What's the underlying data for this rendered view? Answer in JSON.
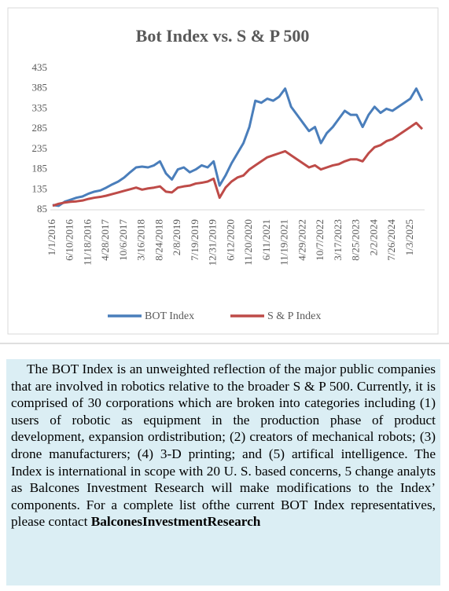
{
  "chart_data": {
    "type": "line",
    "title": "Bot Index vs. S & P 500",
    "categories": [
      "1/1/2016",
      null,
      null,
      "6/10/2016",
      null,
      null,
      "11/18/2016",
      null,
      null,
      "4/28/2017",
      null,
      null,
      "10/6/2017",
      null,
      null,
      "3/16/2018",
      null,
      null,
      "8/24/2018",
      null,
      null,
      "2/8/2019",
      null,
      null,
      "7/19/2019",
      null,
      null,
      "12/31/2019",
      null,
      null,
      "6/12/2020",
      null,
      null,
      "11/20/2020",
      null,
      null,
      "6/11/2021",
      null,
      null,
      "11/19/2021",
      null,
      null,
      "4/29/2022",
      null,
      null,
      "10/7/2022",
      null,
      null,
      "3/17/2023",
      null,
      null,
      "8/25/2023",
      null,
      null,
      "2/2/2024",
      null,
      null,
      "7/26/2024",
      null,
      null,
      "1/3/2025",
      null,
      null
    ],
    "series": [
      {
        "name": "BOT Index",
        "color": "#4a7ebb",
        "values": [
          97,
          95,
          105,
          110,
          115,
          118,
          125,
          130,
          133,
          140,
          148,
          155,
          165,
          178,
          190,
          192,
          190,
          195,
          205,
          175,
          160,
          185,
          190,
          178,
          185,
          195,
          190,
          205,
          145,
          170,
          200,
          225,
          250,
          290,
          355,
          350,
          360,
          355,
          365,
          385,
          340,
          320,
          300,
          280,
          290,
          250,
          275,
          290,
          310,
          330,
          320,
          320,
          290,
          320,
          340,
          325,
          335,
          330,
          340,
          350,
          360,
          385,
          355
        ]
      },
      {
        "name": "S & P Index",
        "color": "#be4b48",
        "values": [
          95,
          100,
          103,
          105,
          106,
          108,
          112,
          115,
          117,
          120,
          124,
          128,
          132,
          136,
          140,
          135,
          138,
          140,
          143,
          130,
          128,
          140,
          143,
          145,
          150,
          152,
          155,
          162,
          115,
          140,
          155,
          165,
          170,
          185,
          195,
          205,
          215,
          220,
          225,
          230,
          220,
          210,
          200,
          190,
          195,
          185,
          190,
          195,
          198,
          205,
          210,
          210,
          205,
          225,
          240,
          245,
          255,
          260,
          270,
          280,
          290,
          300,
          285
        ]
      }
    ],
    "ylim": [
      85,
      435
    ],
    "yticks": [
      85,
      135,
      185,
      235,
      285,
      335,
      385,
      435
    ],
    "grid": false,
    "legend": "bottom"
  },
  "description": {
    "text": "The BOT Index is an unweighted reflection of the major public companies that are involved in robotics relative to the broader S & P 500. Currently, it is comprised of 30 corporations which are broken into categories including (1) users of robotic as equipment in the production phase of product development, expansion ordistribution; (2) creators of mechanical robots; (3) drone manufacturers; (4) 3-D printing; and (5) artifical intelligence. The Index is international in scope with 20 U. S. based concerns, 5 change analyts as Balcones Investment Research will make modifications to the Index’ components. For a  complete list ofthe current BOT Index representatives, please contact",
    "bold": "BalconesInvestmentResearch"
  }
}
